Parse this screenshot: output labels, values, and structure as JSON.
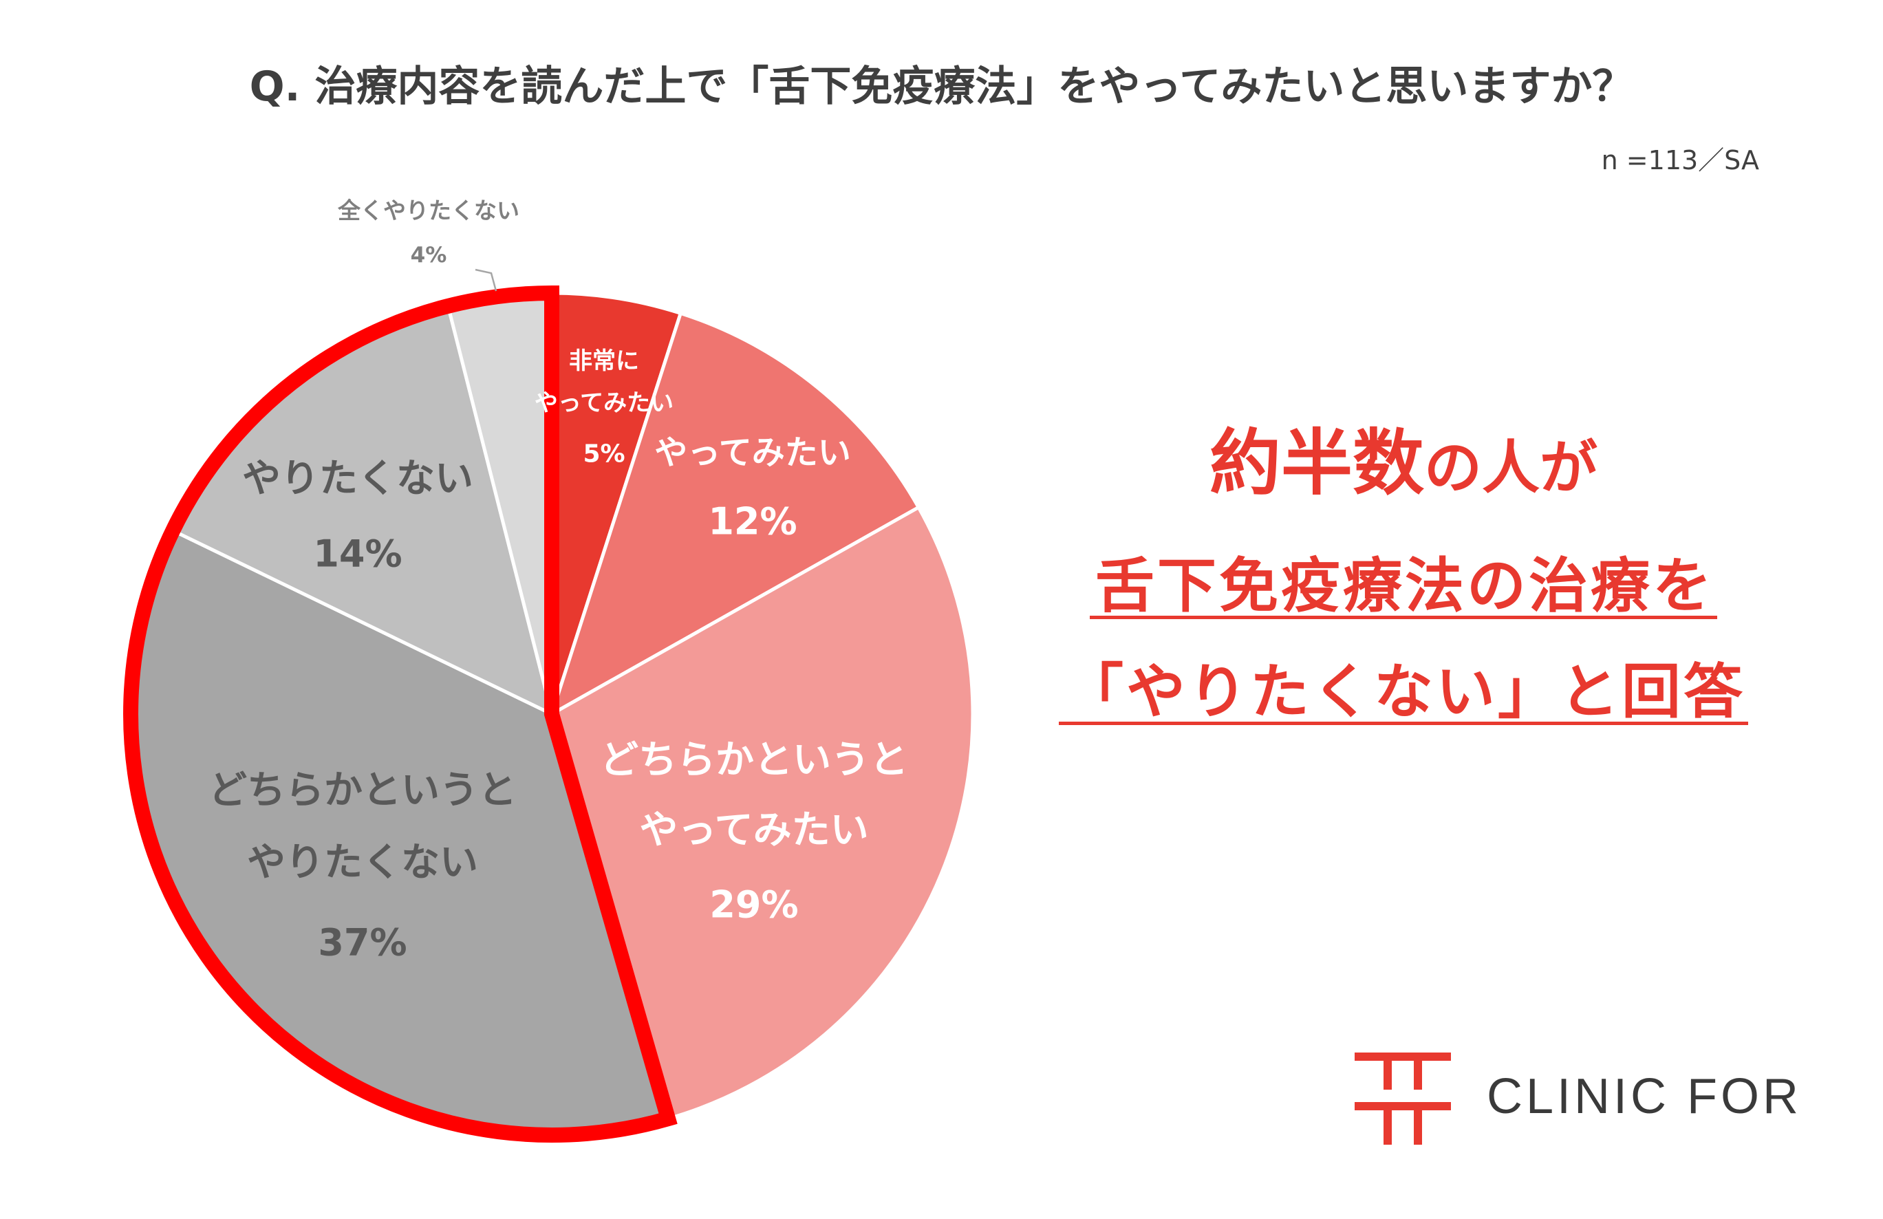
{
  "chart_data": {
    "type": "pie",
    "title": "Q. 治療内容を読んだ上で「舌下免疫療法」をやってみたいと思いますか？",
    "sample_note": "n =113／SA",
    "legend": "none",
    "slices": [
      {
        "label_lines": [
          "非常に",
          "やってみたい"
        ],
        "value": 5,
        "value_label": "5%",
        "color": "#E8392F"
      },
      {
        "label_lines": [
          "やってみたい"
        ],
        "value": 12,
        "value_label": "12%",
        "color": "#EF7570"
      },
      {
        "label_lines": [
          "どちらかというと",
          "やってみたい"
        ],
        "value": 29,
        "value_label": "29%",
        "color": "#F39A97"
      },
      {
        "label_lines": [
          "どちらかというと",
          "やりたくない"
        ],
        "value": 37,
        "value_label": "37%",
        "color": "#A6A6A6"
      },
      {
        "label_lines": [
          "やりたくない"
        ],
        "value": 14,
        "value_label": "14%",
        "color": "#BFBFBF"
      },
      {
        "label_lines": [
          "全くやりたくない"
        ],
        "value": 4,
        "value_label": "4%",
        "color": "#D9D9D9"
      }
    ],
    "highlight": {
      "slice_indices": [
        3,
        4,
        5
      ],
      "outline_color": "#FF0000"
    }
  },
  "callout": {
    "headline_emphasis": "約半数",
    "headline_rest": "の人が",
    "line2": "舌下免疫療法の治療を",
    "line3": "「やりたくない」と回答",
    "color": "#E8392F"
  },
  "logo": {
    "text": "CLINIC FOR",
    "color": "#E8392F"
  }
}
